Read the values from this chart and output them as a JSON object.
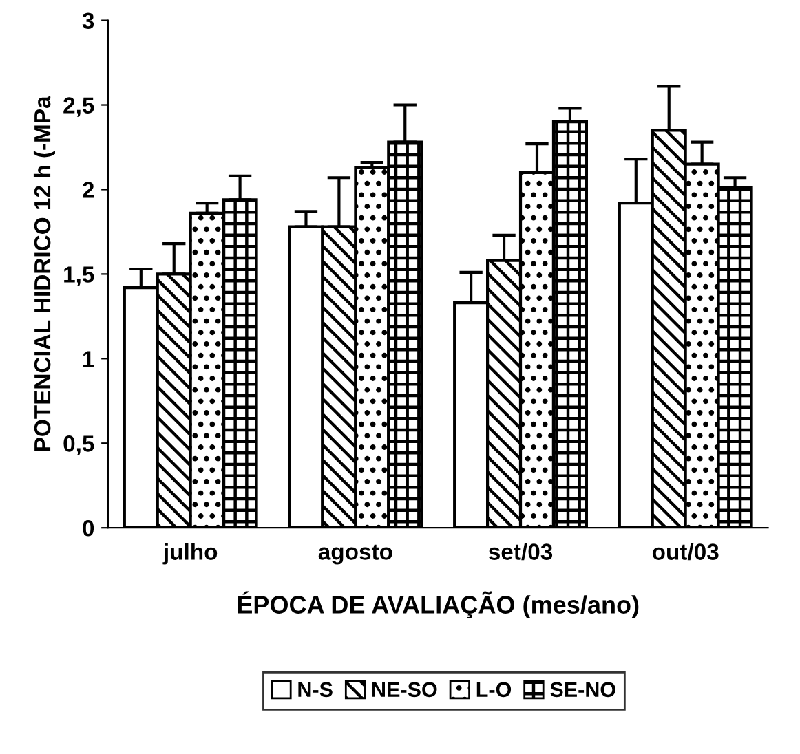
{
  "chart_data": {
    "type": "bar",
    "xlabel": "ÉPOCA DE AVALIAÇÃO (mes/ano)",
    "ylabel": "POTENCIAL HIDRICO 12 h (-MPa",
    "categories": [
      "julho",
      "agosto",
      "set/03",
      "out/03"
    ],
    "series": [
      {
        "name": "N-S",
        "color": "#ffffff",
        "values": [
          1.42,
          1.78,
          1.33,
          1.92
        ],
        "errors": [
          [
            1.42,
            1.53
          ],
          [
            1.78,
            1.87
          ],
          [
            1.33,
            1.51
          ],
          [
            1.92,
            2.18
          ]
        ]
      },
      {
        "name": "NE-SO",
        "color": "#000000",
        "values": [
          1.5,
          1.78,
          1.58,
          2.35
        ],
        "errors": [
          [
            1.5,
            1.68
          ],
          [
            1.78,
            2.07
          ],
          [
            1.58,
            1.73
          ],
          [
            2.35,
            2.61
          ]
        ]
      },
      {
        "name": "L-O",
        "color": "#000000",
        "values": [
          1.86,
          2.13,
          2.1,
          2.15
        ],
        "errors": [
          [
            1.86,
            1.92
          ],
          [
            2.13,
            2.16
          ],
          [
            2.1,
            2.27
          ],
          [
            2.15,
            2.28
          ]
        ]
      },
      {
        "name": "SE-NO",
        "color": "#000000",
        "values": [
          1.94,
          2.28,
          2.4,
          2.01
        ],
        "errors": [
          [
            1.94,
            2.08
          ],
          [
            2.28,
            2.5
          ],
          [
            2.4,
            2.48
          ],
          [
            2.01,
            2.07
          ]
        ]
      }
    ],
    "ylim": [
      0,
      3
    ],
    "yticks": [
      0,
      {
        "value": 0.5,
        "label": "0,5"
      },
      1,
      {
        "value": 1.5,
        "label": "1,5"
      },
      2,
      {
        "value": 2.5,
        "label": "2,5"
      },
      3
    ],
    "grid": false,
    "legend": "bottom"
  }
}
